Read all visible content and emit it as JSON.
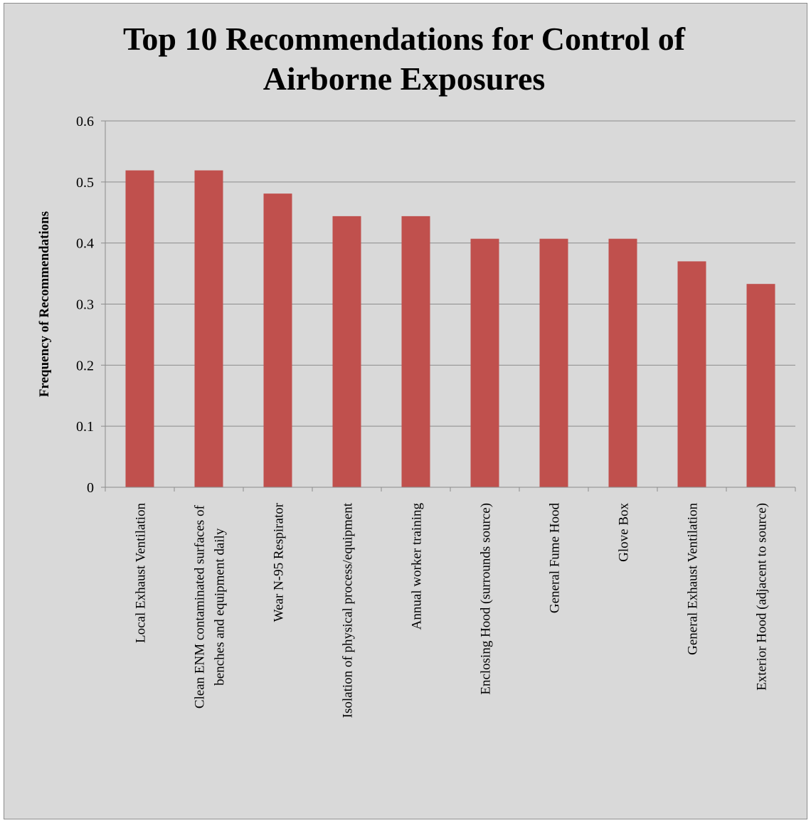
{
  "chart_data": {
    "type": "bar",
    "title": "Top 10 Recommendations for Control of Airborne Exposures",
    "title_lines": [
      "Top 10 Recommendations for Control of",
      "Airborne Exposures"
    ],
    "xlabel": "",
    "ylabel": "Frequency of Recommendations",
    "ylim": [
      0,
      0.6
    ],
    "yticks": [
      "0",
      "0.1",
      "0.2",
      "0.3",
      "0.4",
      "0.5",
      "0.6"
    ],
    "grid": true,
    "legend": "none",
    "bar_color": "#c0504d",
    "categories": [
      [
        "Local Exhaust Ventilation"
      ],
      [
        "Clean ENM contaminated surfaces of",
        "benches and equipment daily"
      ],
      [
        "Wear N-95 Respirator"
      ],
      [
        "Isolation of physical process/equipment"
      ],
      [
        "Annual worker training"
      ],
      [
        "Enclosing Hood (surrounds source)"
      ],
      [
        "General Fume Hood"
      ],
      [
        "Glove Box"
      ],
      [
        "General Exhaust Ventilation"
      ],
      [
        "Exterior Hood (adjacent to source)"
      ]
    ],
    "values": [
      0.519,
      0.519,
      0.481,
      0.444,
      0.444,
      0.407,
      0.407,
      0.407,
      0.37,
      0.333
    ]
  }
}
